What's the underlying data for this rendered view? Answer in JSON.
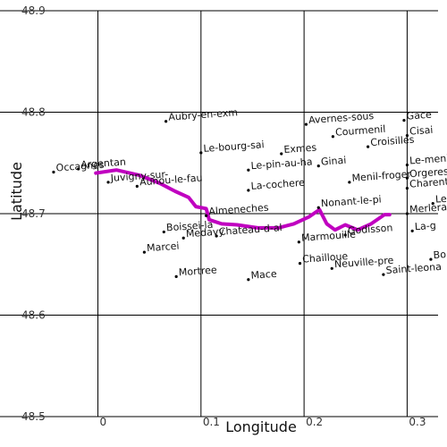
{
  "map": {
    "xlabel": "Longitude",
    "ylabel": "Latitude",
    "xlim": [
      -0.095,
      0.33
    ],
    "ylim": [
      48.5,
      48.9
    ],
    "x_ticks": [
      {
        "value": 0.0,
        "label": "0"
      },
      {
        "value": 0.1,
        "label": "0.1"
      },
      {
        "value": 0.2,
        "label": "0.2"
      },
      {
        "value": 0.3,
        "label": "0.3"
      }
    ],
    "y_ticks": [
      {
        "value": 48.5,
        "label": "48.5"
      },
      {
        "value": 48.6,
        "label": "48.6"
      },
      {
        "value": 48.7,
        "label": "48.7"
      },
      {
        "value": 48.8,
        "label": "48.8"
      },
      {
        "value": 48.9,
        "label": "48.9"
      }
    ],
    "grid": true,
    "colors": {
      "route": "#c000c0",
      "grid": "#000000",
      "marker": "#000000"
    },
    "places": [
      {
        "name": "Aubry-en-exm",
        "lon": 0.066,
        "lat": 48.791
      },
      {
        "name": "Avernes-sous",
        "lon": 0.202,
        "lat": 48.788
      },
      {
        "name": "Gace",
        "lon": 0.297,
        "lat": 48.792
      },
      {
        "name": "Courmenil",
        "lon": 0.228,
        "lat": 48.776
      },
      {
        "name": "Croisilles",
        "lon": 0.262,
        "lat": 48.766
      },
      {
        "name": "Cisai",
        "lon": 0.3,
        "lat": 48.777
      },
      {
        "name": "Le-bourg-sai",
        "lon": 0.1,
        "lat": 48.76
      },
      {
        "name": "Exmes",
        "lon": 0.178,
        "lat": 48.759
      },
      {
        "name": "Ginai",
        "lon": 0.214,
        "lat": 48.747
      },
      {
        "name": "Le-pin-au-ha",
        "lon": 0.146,
        "lat": 48.743
      },
      {
        "name": "Le-meni",
        "lon": 0.3,
        "lat": 48.748
      },
      {
        "name": "Orgeres",
        "lon": 0.3,
        "lat": 48.735
      },
      {
        "name": "Charent",
        "lon": 0.3,
        "lat": 48.725
      },
      {
        "name": "Argentan",
        "lon": -0.019,
        "lat": 48.744
      },
      {
        "name": "Occagnes",
        "lon": -0.043,
        "lat": 48.741
      },
      {
        "name": "Juvigny-sur-",
        "lon": 0.01,
        "lat": 48.731
      },
      {
        "name": "Aunou-le-fau",
        "lon": 0.038,
        "lat": 48.727
      },
      {
        "name": "La-cochere",
        "lon": 0.146,
        "lat": 48.723
      },
      {
        "name": "Menil-froger",
        "lon": 0.244,
        "lat": 48.731
      },
      {
        "name": "Nonant-le-pi",
        "lon": 0.214,
        "lat": 48.706
      },
      {
        "name": "Merlerault",
        "lon": 0.3,
        "lat": 48.7
      },
      {
        "name": "Le-cha",
        "lon": 0.325,
        "lat": 48.71
      },
      {
        "name": "Almeneches",
        "lon": 0.105,
        "lat": 48.698
      },
      {
        "name": "Boissei-la",
        "lon": 0.064,
        "lat": 48.682
      },
      {
        "name": "Medavy",
        "lon": 0.083,
        "lat": 48.676
      },
      {
        "name": "Chateau-d-al",
        "lon": 0.115,
        "lat": 48.678
      },
      {
        "name": "Marmouille",
        "lon": 0.195,
        "lat": 48.672
      },
      {
        "name": "Godisson",
        "lon": 0.24,
        "lat": 48.679
      },
      {
        "name": "La-g",
        "lon": 0.305,
        "lat": 48.683
      },
      {
        "name": "Marcei",
        "lon": 0.045,
        "lat": 48.662
      },
      {
        "name": "Chailloue",
        "lon": 0.196,
        "lat": 48.651
      },
      {
        "name": "Neuville-pre",
        "lon": 0.227,
        "lat": 48.646
      },
      {
        "name": "Saint-leona",
        "lon": 0.277,
        "lat": 48.64
      },
      {
        "name": "Bo",
        "lon": 0.323,
        "lat": 48.655
      },
      {
        "name": "Mortree",
        "lon": 0.076,
        "lat": 48.638
      },
      {
        "name": "Mace",
        "lon": 0.146,
        "lat": 48.635
      }
    ],
    "route": [
      [
        -0.002,
        48.74
      ],
      [
        0.018,
        48.743
      ],
      [
        0.04,
        48.738
      ],
      [
        0.06,
        48.73
      ],
      [
        0.075,
        48.722
      ],
      [
        0.088,
        48.716
      ],
      [
        0.095,
        48.707
      ],
      [
        0.105,
        48.705
      ],
      [
        0.108,
        48.694
      ],
      [
        0.12,
        48.69
      ],
      [
        0.135,
        48.689
      ],
      [
        0.155,
        48.686
      ],
      [
        0.175,
        48.686
      ],
      [
        0.19,
        48.69
      ],
      [
        0.205,
        48.697
      ],
      [
        0.215,
        48.704
      ],
      [
        0.222,
        48.69
      ],
      [
        0.23,
        48.684
      ],
      [
        0.24,
        48.689
      ],
      [
        0.252,
        48.684
      ],
      [
        0.265,
        48.69
      ],
      [
        0.278,
        48.699
      ],
      [
        0.283,
        48.699
      ]
    ]
  }
}
